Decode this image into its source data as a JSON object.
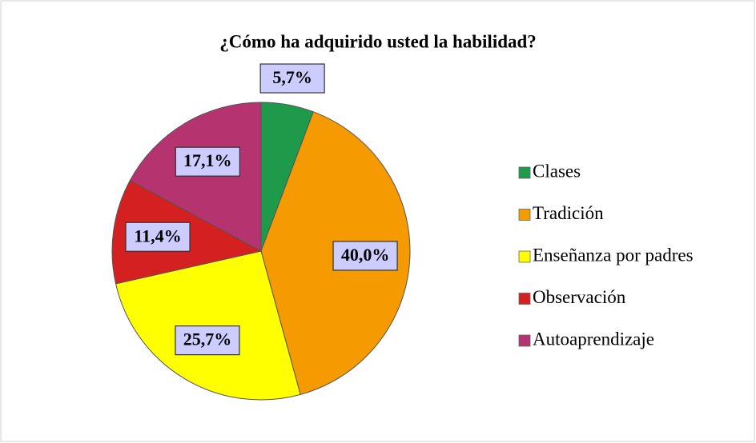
{
  "chart_data": {
    "type": "pie",
    "title": "¿Cómo ha adquirido usted la habilidad?",
    "categories": [
      "Clases",
      "Tradición",
      "Enseñanza por padres",
      "Observación",
      "Autoaprendizaje"
    ],
    "values": [
      5.7,
      40.0,
      25.7,
      11.4,
      17.1
    ],
    "value_labels": [
      "5,7%",
      "40,0%",
      "25,7%",
      "11,4%",
      "17,1%"
    ],
    "colors": [
      "#1e9a4a",
      "#f59a00",
      "#ffff00",
      "#d42020",
      "#b5336e"
    ],
    "legend": "right"
  }
}
